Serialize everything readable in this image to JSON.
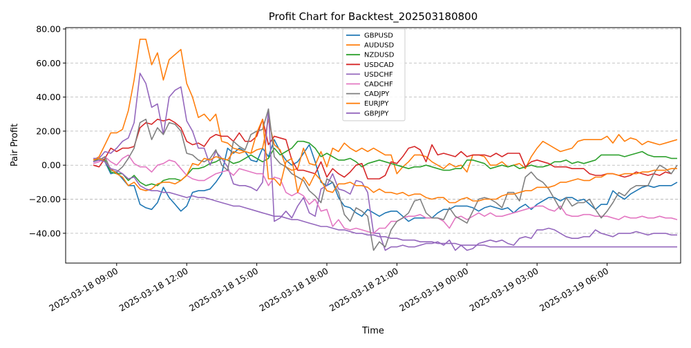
{
  "chart_data": {
    "type": "line",
    "title": "Profit Chart for Backtest_202503180800",
    "xlabel": "Time",
    "ylabel": "Pair Profit",
    "ylim": [
      -57.5,
      80.8
    ],
    "x_start": "2025-03-18 08:00",
    "x_step_minutes": 15,
    "grid": "y",
    "legend_placement": "top-center",
    "x_ticks": [
      {
        "label": "2025-03-18 09:00",
        "index": 4
      },
      {
        "label": "2025-03-18 12:00",
        "index": 16
      },
      {
        "label": "2025-03-18 15:00",
        "index": 28
      },
      {
        "label": "2025-03-18 18:00",
        "index": 40
      },
      {
        "label": "2025-03-18 21:00",
        "index": 52
      },
      {
        "label": "2025-03-19 00:00",
        "index": 64
      },
      {
        "label": "2025-03-19 03:00",
        "index": 76
      },
      {
        "label": "2025-03-19 06:00",
        "index": 88
      }
    ],
    "y_ticks": [
      {
        "label": "−40.00",
        "value": -40
      },
      {
        "label": "−20.00",
        "value": -20
      },
      {
        "label": "0.00",
        "value": 0
      },
      {
        "label": "20.00",
        "value": 20
      },
      {
        "label": "40.00",
        "value": 40
      },
      {
        "label": "60.00",
        "value": 60
      },
      {
        "label": "80.00",
        "value": 80
      }
    ],
    "series": [
      {
        "name": "GBPUSD",
        "color": "#1f77b4",
        "values": [
          3,
          4,
          2,
          -5,
          -4,
          -8,
          -12,
          -12,
          -23,
          -25,
          -26,
          -22,
          -13,
          -19,
          -23,
          -27,
          -24,
          -16,
          -15,
          -15,
          -14,
          -10,
          -5,
          10,
          7,
          10,
          8,
          3,
          2,
          10,
          5,
          15,
          8,
          3,
          0,
          2,
          7,
          12,
          2,
          -10,
          -12,
          -10,
          -19,
          -24,
          -25,
          -28,
          -30,
          -26,
          -28,
          -30,
          -28,
          -27,
          -27,
          -30,
          -33,
          -31,
          -31,
          -31,
          -31,
          -28,
          -26,
          -26,
          -24,
          -24,
          -24,
          -25,
          -27,
          -25,
          -24,
          -25,
          -26,
          -25,
          -28,
          -25,
          -23,
          -26,
          -23,
          -21,
          -19,
          -19,
          -21,
          -19,
          -19,
          -21,
          -20,
          -23,
          -26,
          -23,
          -23,
          -15,
          -18,
          -20,
          -17,
          -15,
          -13,
          -12,
          -13,
          -12,
          -12,
          -12,
          -10
        ]
      },
      {
        "name": "AUDUSD",
        "color": "#ff7f0e",
        "values": [
          3,
          5,
          12,
          19,
          19,
          21,
          32,
          50,
          74,
          74,
          59,
          66,
          50,
          62,
          65,
          68,
          48,
          40,
          28,
          30,
          26,
          30,
          14,
          13,
          10,
          9,
          8,
          7,
          9,
          10,
          27,
          12,
          9,
          -1,
          -3,
          -2,
          10,
          1,
          0,
          8,
          -1,
          10,
          8,
          13,
          10,
          8,
          10,
          8,
          10,
          8,
          6,
          6,
          -5,
          -1,
          2,
          6,
          6,
          5,
          2,
          0,
          -2,
          1,
          -1,
          0,
          -4,
          6,
          6,
          5,
          0,
          0,
          2,
          -1,
          0,
          1,
          -2,
          5,
          10,
          14,
          12,
          10,
          8,
          9,
          10,
          14,
          15,
          15,
          15,
          15,
          17,
          13,
          18,
          14,
          16,
          15,
          12,
          14,
          13,
          12,
          13,
          14,
          15
        ]
      },
      {
        "name": "NZDUSD",
        "color": "#2ca02c",
        "values": [
          2,
          4,
          3,
          -4,
          -5,
          -5,
          -9,
          -6,
          -10,
          -12,
          -11,
          -12,
          -9,
          -8,
          -8,
          -9,
          -6,
          -2,
          -2,
          -1,
          1,
          2,
          4,
          3,
          1,
          2,
          4,
          6,
          4,
          2,
          4,
          10,
          6,
          8,
          10,
          14,
          14,
          13,
          10,
          5,
          7,
          5,
          3,
          3,
          4,
          2,
          -1,
          1,
          2,
          3,
          2,
          1,
          0,
          -1,
          -2,
          -1,
          -1,
          0,
          -1,
          -2,
          -3,
          -3,
          -2,
          -2,
          3,
          3,
          2,
          1,
          -2,
          -1,
          0,
          -1,
          0,
          -2,
          -1,
          0,
          -1,
          -1,
          0,
          2,
          2,
          3,
          1,
          2,
          1,
          2,
          3,
          6,
          6,
          6,
          6,
          5,
          6,
          7,
          8,
          6,
          5,
          5,
          5,
          4,
          4
        ]
      },
      {
        "name": "USDCAD",
        "color": "#d62728",
        "values": [
          0,
          -1,
          4,
          10,
          8,
          10,
          10,
          11,
          22,
          25,
          24,
          27,
          26,
          27,
          25,
          22,
          14,
          12,
          13,
          11,
          16,
          18,
          17,
          17,
          14,
          19,
          14,
          14,
          17,
          27,
          12,
          17,
          16,
          15,
          3,
          -3,
          -3,
          -4,
          -5,
          2,
          -7,
          -2,
          -5,
          -7,
          -4,
          0,
          1,
          -8,
          -8,
          -8,
          -6,
          2,
          1,
          5,
          10,
          11,
          9,
          2,
          12,
          6,
          7,
          6,
          5,
          8,
          5,
          6,
          6,
          6,
          5,
          7,
          5,
          7,
          7,
          7,
          -1,
          2,
          3,
          2,
          1,
          -1,
          -1,
          -1,
          -2,
          -2,
          -2,
          -5,
          -6,
          -6,
          -5,
          -5,
          -6,
          -7,
          -6,
          -4,
          -5,
          -6,
          -5,
          -6,
          -4,
          -5
        ]
      },
      {
        "name": "USDCHF",
        "color": "#9467bd",
        "values": [
          4,
          4,
          8,
          7,
          10,
          14,
          16,
          25,
          54,
          48,
          34,
          36,
          18,
          40,
          44,
          46,
          26,
          20,
          10,
          10,
          0,
          8,
          4,
          -1,
          -11,
          -12,
          -12,
          -13,
          -15,
          -10,
          33,
          -33,
          -31,
          -27,
          -31,
          -24,
          -19,
          -28,
          -30,
          -14,
          -12,
          -5,
          -14,
          -15,
          -17,
          -9,
          -10,
          -16,
          -40,
          -40,
          -50,
          -48,
          -48,
          -47,
          -48,
          -48,
          -47,
          -46,
          -46,
          -45,
          -47,
          -44,
          -50,
          -47,
          -50,
          -49,
          -46,
          -45,
          -44,
          -45,
          -44,
          -46,
          -47,
          -43,
          -42,
          -43,
          -38,
          -38,
          -37,
          -38,
          -40,
          -42,
          -43,
          -43,
          -42,
          -42,
          -38,
          -40,
          -41,
          -42,
          -40,
          -40,
          -40,
          -39,
          -40,
          -41,
          -40,
          -40,
          -40,
          -41,
          -41
        ]
      },
      {
        "name": "CADCHF",
        "color": "#e377c2",
        "values": [
          1,
          2,
          5,
          2,
          0,
          4,
          6,
          1,
          -1,
          -1,
          -4,
          0,
          1,
          3,
          2,
          -2,
          -6,
          -8,
          -9,
          -9,
          -7,
          -5,
          -4,
          -3,
          -6,
          -2,
          -3,
          -4,
          -5,
          -5,
          -12,
          -7,
          -8,
          -16,
          -18,
          -16,
          -18,
          -23,
          -20,
          -27,
          -26,
          -36,
          -32,
          -37,
          -38,
          -37,
          -38,
          -39,
          -40,
          -37,
          -37,
          -33,
          -33,
          -31,
          -30,
          -30,
          -29,
          -31,
          -31,
          -31,
          -33,
          -37,
          -31,
          -30,
          -32,
          -30,
          -28,
          -30,
          -28,
          -30,
          -30,
          -29,
          -28,
          -27,
          -26,
          -25,
          -24,
          -24,
          -26,
          -27,
          -24,
          -29,
          -30,
          -30,
          -29,
          -29,
          -30,
          -30,
          -30,
          -31,
          -32,
          -30,
          -31,
          -31,
          -30,
          -31,
          -31,
          -30,
          -31,
          -31,
          -32
        ]
      },
      {
        "name": "CADJPY",
        "color": "#7f7f7f",
        "values": [
          2,
          3,
          5,
          -3,
          -4,
          -1,
          4,
          10,
          25,
          27,
          15,
          22,
          18,
          25,
          24,
          20,
          7,
          6,
          3,
          2,
          4,
          9,
          0,
          -3,
          14,
          11,
          9,
          18,
          20,
          21,
          33,
          5,
          1,
          -1,
          -5,
          -7,
          -9,
          -15,
          -18,
          -22,
          -8,
          -10,
          -16,
          -29,
          -33,
          -25,
          -27,
          -30,
          -50,
          -45,
          -48,
          -38,
          -33,
          -31,
          -28,
          -21,
          -20,
          -28,
          -31,
          -31,
          -32,
          -25,
          -30,
          -32,
          -34,
          -27,
          -20,
          -19,
          -20,
          -22,
          -25,
          -16,
          -16,
          -21,
          -7,
          -4,
          -8,
          -10,
          -14,
          -20,
          -26,
          -19,
          -24,
          -22,
          -22,
          -20,
          -26,
          -31,
          -27,
          -22,
          -16,
          -18,
          -14,
          -12,
          -12,
          -12,
          -5,
          0,
          -2,
          -5,
          0
        ]
      },
      {
        "name": "EURJPY",
        "color": "#ff7f0e",
        "values": [
          3,
          4,
          2,
          -2,
          -5,
          -7,
          -12,
          -10,
          -14,
          -15,
          -14,
          -11,
          -10,
          -10,
          -11,
          -9,
          -6,
          1,
          0,
          4,
          3,
          5,
          4,
          3,
          8,
          7,
          8,
          7,
          19,
          27,
          -8,
          -8,
          -12,
          2,
          4,
          -16,
          -7,
          -12,
          -5,
          -9,
          -15,
          -16,
          -11,
          -11,
          -10,
          -12,
          -12,
          -13,
          -16,
          -14,
          -16,
          -16,
          -17,
          -16,
          -18,
          -17,
          -17,
          -19,
          -20,
          -19,
          -19,
          -22,
          -22,
          -20,
          -19,
          -21,
          -21,
          -20,
          -20,
          -20,
          -18,
          -17,
          -17,
          -16,
          -15,
          -15,
          -13,
          -13,
          -13,
          -12,
          -10,
          -10,
          -9,
          -8,
          -9,
          -9,
          -7,
          -7,
          -5,
          -5,
          -6,
          -5,
          -5,
          -5,
          -4,
          -4,
          -3,
          -3,
          -3,
          -2,
          -2
        ]
      },
      {
        "name": "GBPJPY",
        "color": "#9467bd",
        "values": [
          2,
          3,
          2,
          -2,
          -3,
          -5,
          -8,
          -7,
          -12,
          -14,
          -15,
          -15,
          -16,
          -16,
          -17,
          -18,
          -19,
          -18,
          -19,
          -19,
          -20,
          -21,
          -22,
          -23,
          -24,
          -24,
          -25,
          -26,
          -27,
          -28,
          -29,
          -30,
          -30,
          -31,
          -32,
          -32,
          -33,
          -34,
          -35,
          -36,
          -36,
          -37,
          -38,
          -38,
          -39,
          -40,
          -40,
          -41,
          -41,
          -42,
          -42,
          -43,
          -43,
          -44,
          -44,
          -44,
          -45,
          -45,
          -45,
          -46,
          -46,
          -46,
          -46,
          -47,
          -47,
          -47,
          -47,
          -47,
          -48,
          -48,
          -48,
          -48,
          -48,
          -48,
          -48,
          -48,
          -48,
          -48,
          -48,
          -48,
          -48,
          -48,
          -48,
          -48,
          -48,
          -48,
          -48,
          -48,
          -48,
          -48,
          -48,
          -48,
          -48,
          -48,
          -48,
          -48,
          -48,
          -48,
          -48,
          -48,
          -48
        ]
      }
    ]
  }
}
